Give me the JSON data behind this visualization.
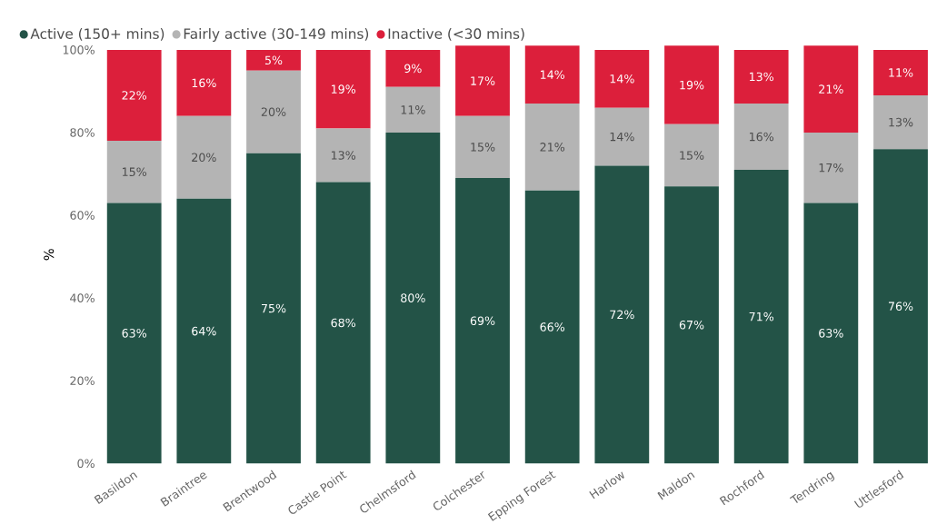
{
  "chart_data": {
    "type": "bar",
    "stacked": true,
    "ylabel": "%",
    "categories": [
      "Basildon",
      "Braintree",
      "Brentwood",
      "Castle Point",
      "Chelmsford",
      "Colchester",
      "Epping Forest",
      "Harlow",
      "Maldon",
      "Rochford",
      "Tendring",
      "Uttlesford"
    ],
    "series": [
      {
        "name": "Active (150+ mins)",
        "color": "#235347",
        "values": [
          63,
          64,
          75,
          68,
          80,
          69,
          66,
          72,
          67,
          71,
          63,
          76
        ],
        "value_labels": [
          "63%",
          "64%",
          "75%",
          "68%",
          "80%",
          "69%",
          "66%",
          "72%",
          "67%",
          "71%",
          "63%",
          "76%"
        ]
      },
      {
        "name": "Fairly active (30-149 mins)",
        "color": "#b4b4b4",
        "values": [
          15,
          20,
          20,
          13,
          11,
          15,
          21,
          14,
          15,
          16,
          17,
          13
        ],
        "value_labels": [
          "15%",
          "20%",
          "20%",
          "13%",
          "11%",
          "15%",
          "21%",
          "14%",
          "15%",
          "16%",
          "17%",
          "13%"
        ]
      },
      {
        "name": "Inactive (<30 mins)",
        "color": "#dc1f3b",
        "values": [
          22,
          16,
          5,
          19,
          9,
          17,
          14,
          14,
          19,
          13,
          21,
          11
        ],
        "value_labels": [
          "22%",
          "16%",
          "5%",
          "19%",
          "9%",
          "17%",
          "14%",
          "14%",
          "19%",
          "13%",
          "21%",
          "11%"
        ]
      }
    ],
    "ylim": [
      0,
      101
    ],
    "yticks": [
      {
        "value": 0,
        "label": "0%"
      },
      {
        "value": 20,
        "label": "20%"
      },
      {
        "value": 40,
        "label": "40%"
      },
      {
        "value": 60,
        "label": "60%"
      },
      {
        "value": 80,
        "label": "80%"
      },
      {
        "value": 100,
        "label": "100%"
      }
    ],
    "legend": "top left",
    "grid": false
  }
}
